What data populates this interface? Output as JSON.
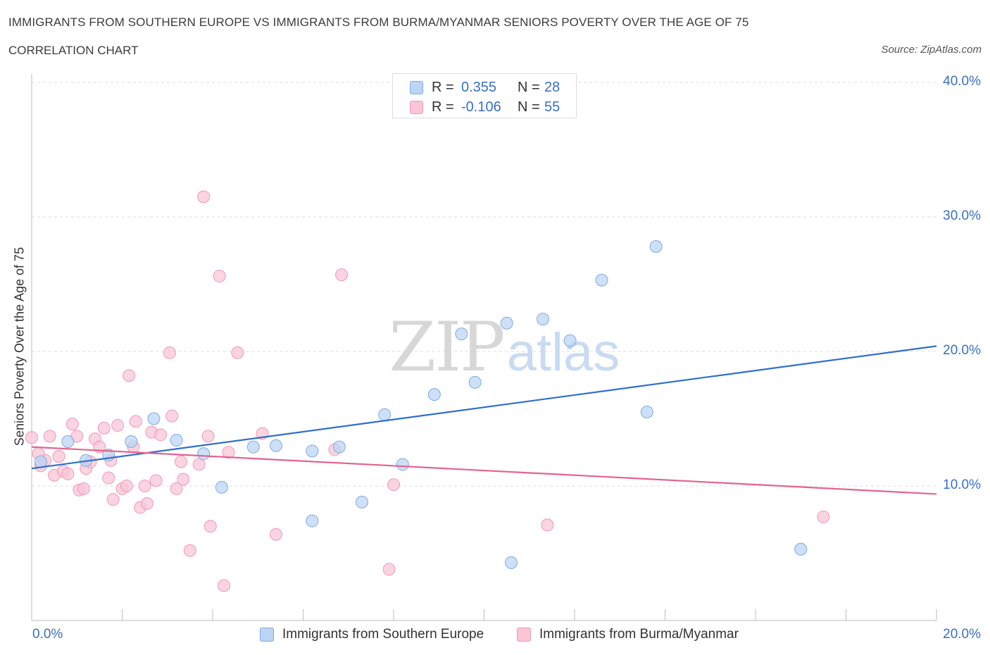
{
  "header": {
    "title": "IMMIGRANTS FROM SOUTHERN EUROPE VS IMMIGRANTS FROM BURMA/MYANMAR SENIORS POVERTY OVER THE AGE OF 75",
    "subtitle": "CORRELATION CHART",
    "source": "Source: ZipAtlas.com"
  },
  "watermark": {
    "zip": "ZIP",
    "atlas": "atlas"
  },
  "legend": {
    "rows": [
      {
        "r_label": "R =",
        "r_value": "0.355",
        "n_label": "N =",
        "n_value": "28",
        "color": "#a9c8f0"
      },
      {
        "r_label": "R =",
        "r_value": "-0.106",
        "n_label": "N =",
        "n_value": "55",
        "color": "#f5b8cb"
      }
    ]
  },
  "colors": {
    "blue_fill": "#bcd5f5",
    "blue_stroke": "#7faae0",
    "blue_line": "#2f6fcc",
    "pink_fill": "#f8c6d5",
    "pink_stroke": "#ee9ab5",
    "pink_line": "#e4648f",
    "tick_text": "#3a6fc2"
  },
  "chart_data": {
    "type": "scatter",
    "title": "IMMIGRANTS FROM SOUTHERN EUROPE VS IMMIGRANTS FROM BURMA/MYANMAR SENIORS POVERTY OVER THE AGE OF 75",
    "subtitle": "CORRELATION CHART",
    "xlabel": "",
    "ylabel": "Seniors Poverty Over the Age of 75",
    "xlim": [
      0,
      20
    ],
    "ylim": [
      0,
      40
    ],
    "x_tick_labels": [
      "0.0%",
      "20.0%"
    ],
    "y_tick_labels": [
      "10.0%",
      "20.0%",
      "30.0%",
      "40.0%"
    ],
    "y_tick_values": [
      10,
      20,
      30,
      40
    ],
    "grid": "horizontal dashed",
    "legend_position": "top-center",
    "series": [
      {
        "name": "Immigrants from Southern Europe",
        "r": 0.355,
        "n": 28,
        "trend": {
          "x": [
            0,
            20
          ],
          "y": [
            11.3,
            20.4
          ]
        },
        "points": [
          [
            0.2,
            11.8
          ],
          [
            0.8,
            13.3
          ],
          [
            1.2,
            11.9
          ],
          [
            1.7,
            12.3
          ],
          [
            2.2,
            13.3
          ],
          [
            2.7,
            15.0
          ],
          [
            3.2,
            13.4
          ],
          [
            3.8,
            12.4
          ],
          [
            4.2,
            9.9
          ],
          [
            4.9,
            12.9
          ],
          [
            5.4,
            13.0
          ],
          [
            6.2,
            7.4
          ],
          [
            6.2,
            12.6
          ],
          [
            6.8,
            12.9
          ],
          [
            7.3,
            8.8
          ],
          [
            7.8,
            15.3
          ],
          [
            8.2,
            11.6
          ],
          [
            8.9,
            16.8
          ],
          [
            9.5,
            21.3
          ],
          [
            9.8,
            17.7
          ],
          [
            10.5,
            22.1
          ],
          [
            10.6,
            4.3
          ],
          [
            11.3,
            22.4
          ],
          [
            11.9,
            20.8
          ],
          [
            12.6,
            25.3
          ],
          [
            13.6,
            15.5
          ],
          [
            13.8,
            27.8
          ],
          [
            17.0,
            5.3
          ]
        ]
      },
      {
        "name": "Immigrants from Burma/Myanmar",
        "r": -0.106,
        "n": 55,
        "trend": {
          "x": [
            0,
            20
          ],
          "y": [
            12.9,
            9.4
          ]
        },
        "points": [
          [
            0.0,
            13.6
          ],
          [
            0.2,
            11.5
          ],
          [
            0.3,
            11.9
          ],
          [
            0.4,
            13.7
          ],
          [
            0.5,
            10.8
          ],
          [
            0.6,
            12.2
          ],
          [
            0.7,
            11.1
          ],
          [
            0.8,
            10.9
          ],
          [
            0.9,
            14.6
          ],
          [
            1.0,
            13.7
          ],
          [
            1.05,
            9.7
          ],
          [
            1.15,
            9.8
          ],
          [
            1.2,
            11.3
          ],
          [
            1.3,
            11.8
          ],
          [
            1.4,
            13.5
          ],
          [
            1.5,
            12.9
          ],
          [
            1.6,
            14.3
          ],
          [
            1.7,
            10.6
          ],
          [
            1.75,
            11.9
          ],
          [
            1.8,
            9.0
          ],
          [
            1.9,
            14.5
          ],
          [
            2.0,
            9.8
          ],
          [
            2.1,
            10.0
          ],
          [
            2.15,
            18.2
          ],
          [
            2.25,
            12.9
          ],
          [
            2.3,
            14.8
          ],
          [
            2.4,
            8.4
          ],
          [
            2.5,
            10.0
          ],
          [
            2.55,
            8.7
          ],
          [
            2.65,
            14.0
          ],
          [
            2.75,
            10.4
          ],
          [
            2.85,
            13.8
          ],
          [
            3.05,
            19.9
          ],
          [
            3.1,
            15.2
          ],
          [
            3.2,
            9.8
          ],
          [
            3.3,
            11.8
          ],
          [
            3.35,
            10.5
          ],
          [
            3.5,
            5.2
          ],
          [
            3.7,
            11.6
          ],
          [
            3.8,
            31.5
          ],
          [
            3.9,
            13.7
          ],
          [
            3.95,
            7.0
          ],
          [
            4.15,
            25.6
          ],
          [
            4.25,
            2.6
          ],
          [
            4.35,
            12.5
          ],
          [
            4.55,
            19.9
          ],
          [
            5.1,
            13.9
          ],
          [
            5.4,
            6.4
          ],
          [
            6.7,
            12.7
          ],
          [
            6.85,
            25.7
          ],
          [
            7.9,
            3.8
          ],
          [
            8.0,
            10.1
          ],
          [
            11.4,
            7.1
          ],
          [
            17.5,
            7.7
          ],
          [
            0.15,
            12.4
          ]
        ]
      }
    ]
  },
  "bottom_legend": {
    "items": [
      {
        "label": "Immigrants from Southern Europe"
      },
      {
        "label": "Immigrants from Burma/Myanmar"
      }
    ]
  }
}
